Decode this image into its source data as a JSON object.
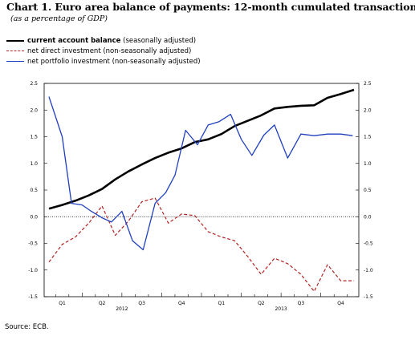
{
  "header": {
    "title": "Chart 1. Euro area balance of payments: 12-month cumulated transactions",
    "subtitle": "(as a percentage of GDP)"
  },
  "legend": [
    {
      "label_bold": "current account balance",
      "label_rest": " (seasonally adjusted)"
    },
    {
      "label_bold": "",
      "label_rest": "net direct investment (non-seasonally adjusted)"
    },
    {
      "label_bold": "",
      "label_rest": "net portfolio investment (non-seasonally adjusted)"
    }
  ],
  "source": "Source: ECB.",
  "chart_data": {
    "type": "line",
    "yticks": [
      "2.5",
      "2.0",
      "1.5",
      "1.0",
      "0.5",
      "0.0",
      "-0.5",
      "-1.0",
      "-1.5"
    ],
    "ylim": [
      -1.5,
      2.5
    ],
    "quarter_labels": [
      "Q1",
      "Q2",
      "Q3",
      "Q4",
      "Q1",
      "Q2",
      "Q3",
      "Q4"
    ],
    "year_labels": [
      "2012",
      "2013"
    ],
    "grid": false,
    "zero_line": true,
    "series": [
      {
        "name": "current account balance (seasonally adjusted)",
        "color": "#000000",
        "style": "solid-thick",
        "x": [
          0,
          1,
          2,
          3,
          4,
          5,
          6,
          7,
          8,
          9,
          10,
          11,
          12,
          13,
          14,
          15,
          16,
          17,
          18,
          19,
          20,
          21,
          22,
          23
        ],
        "values": [
          0.15,
          0.22,
          0.3,
          0.4,
          0.52,
          0.7,
          0.85,
          0.98,
          1.1,
          1.2,
          1.28,
          1.4,
          1.45,
          1.55,
          1.7,
          1.8,
          1.9,
          2.03,
          2.06,
          2.08,
          2.09,
          2.23,
          2.3,
          2.38
        ]
      },
      {
        "name": "net direct investment (non-seasonally adjusted)",
        "color": "#b22222",
        "style": "dashed",
        "x": [
          0,
          1,
          2,
          3,
          4,
          5,
          6,
          7,
          8,
          9,
          10,
          11,
          12,
          13,
          14,
          15,
          16,
          17,
          18,
          19,
          20,
          21,
          22,
          23
        ],
        "values": [
          -0.85,
          -0.52,
          -0.38,
          -0.12,
          0.2,
          -0.35,
          -0.08,
          0.28,
          0.35,
          -0.12,
          0.05,
          0.02,
          -0.28,
          -0.38,
          -0.45,
          -0.75,
          -1.08,
          -0.78,
          -0.88,
          -1.08,
          -1.4,
          -0.9,
          -1.2,
          -1.2
        ]
      },
      {
        "name": "net portfolio investment (non-seasonally adjusted)",
        "color": "#1f3fbf",
        "style": "solid",
        "x": [
          0,
          1,
          1.7,
          2.5,
          3.2,
          4.0,
          4.7,
          5.5,
          6.3,
          7.1,
          8.0,
          8.8,
          9.5,
          10.3,
          11.2,
          12.0,
          12.8,
          13.7,
          14.5,
          15.3,
          16.2,
          17.0,
          18.0,
          19.0,
          20.0,
          21.0,
          22.0,
          22.9
        ],
        "values": [
          2.25,
          1.5,
          0.25,
          0.22,
          0.1,
          -0.02,
          -0.1,
          0.1,
          -0.45,
          -0.62,
          0.25,
          0.45,
          0.78,
          1.62,
          1.35,
          1.72,
          1.78,
          1.92,
          1.45,
          1.15,
          1.53,
          1.72,
          1.1,
          1.55,
          1.52,
          1.55,
          1.55,
          1.52
        ]
      }
    ]
  }
}
